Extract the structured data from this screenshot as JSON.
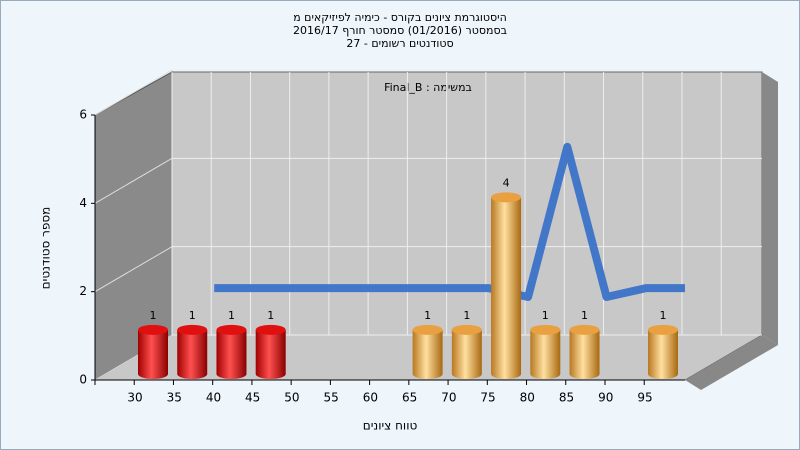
{
  "chart_data": {
    "type": "bar3d",
    "title_lines": [
      "היסטוגרמת ציונים בקורס - כימיה לפיזיקאים מ",
      "בסמסטר (01/2016) סמסטר חורף 2016/17",
      "סטודנטים רשומים - 27"
    ],
    "annotation": "במשימה : Final_B",
    "x_label": "טווח ציונים",
    "y_label": "מספר סטודנטים",
    "categories": [
      "30",
      "35",
      "40",
      "45",
      "50",
      "55",
      "60",
      "65",
      "70",
      "75",
      "80",
      "85",
      "90",
      "95"
    ],
    "values": [
      1,
      1,
      1,
      1,
      0,
      0,
      0,
      1,
      1,
      4,
      1,
      1,
      0,
      1
    ],
    "colors": [
      "#e01010",
      "#e01010",
      "#e01010",
      "#e01010",
      "#e01010",
      "#e01010",
      "#e01010",
      "#e8a040",
      "#e8a040",
      "#e8a040",
      "#e8a040",
      "#e8a040",
      "#e8a040",
      "#e8a040"
    ],
    "curve": {
      "color": "#3a72c8",
      "values": [
        null,
        1.4,
        1.4,
        1.4,
        1.4,
        1.4,
        1.4,
        1.4,
        1.4,
        1.2,
        4.6,
        1.2,
        1.4,
        1.4
      ]
    },
    "ylim": [
      0,
      6
    ],
    "yticks": [
      0,
      2,
      4,
      6
    ],
    "grid": true
  }
}
